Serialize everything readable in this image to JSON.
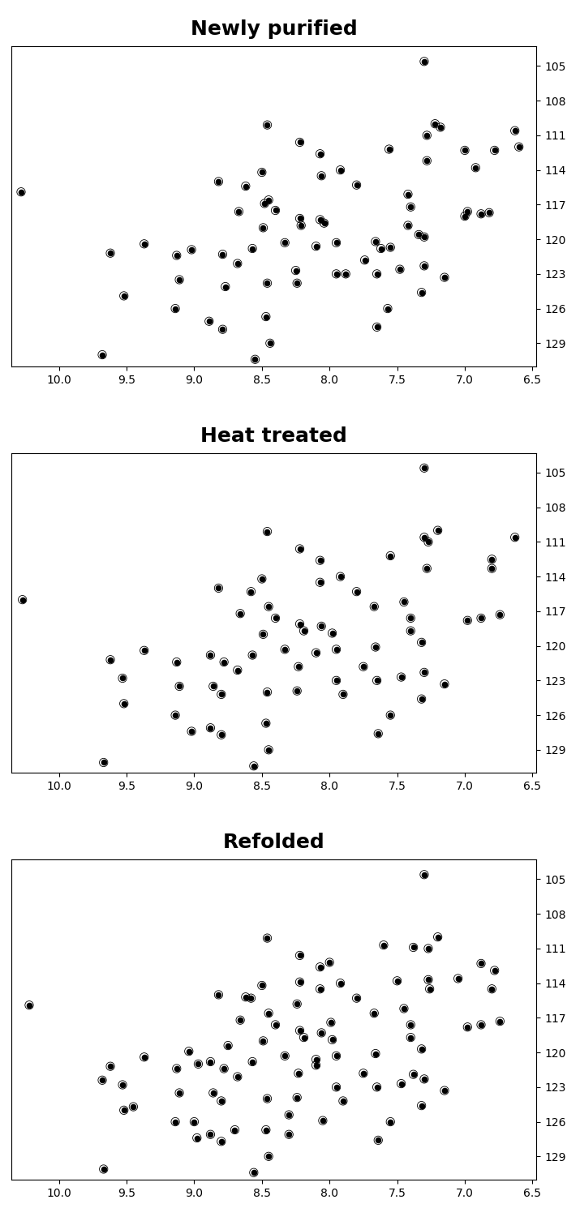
{
  "chart_data": [
    {
      "type": "scatter",
      "title": "Newly purified",
      "color": "#000000",
      "marker": "o",
      "xlim": [
        10.35,
        6.47
      ],
      "ylim": [
        131.0,
        103.3
      ],
      "xticks": [
        {
          "value": 10,
          "label": "10.0"
        },
        9.5,
        {
          "value": 9,
          "label": "9.0"
        },
        8.5,
        {
          "value": 8,
          "label": "8.0"
        },
        7.5,
        {
          "value": 7,
          "label": "7.0"
        },
        6.5
      ],
      "yticks": [
        105,
        108,
        111,
        114,
        117,
        120,
        123,
        126,
        129
      ],
      "x": [
        7.3,
        8.46,
        8.22,
        8.07,
        7.18,
        7.22,
        7.28,
        8.5,
        7.92,
        8.06,
        8.82,
        10.28,
        7.8,
        8.45,
        8.48,
        8.67,
        8.4,
        7.42,
        7.4,
        8.22,
        8.21,
        8.07,
        8.04,
        7.42,
        8.49,
        7.34,
        7.3,
        6.98,
        6.88,
        6.82,
        7.0,
        9.37,
        8.33,
        8.1,
        7.95,
        7.66,
        7.62,
        7.55,
        9.62,
        9.13,
        8.79,
        8.57,
        8.68,
        7.74,
        7.95,
        7.88,
        7.65,
        7.48,
        7.3,
        7.15,
        9.11,
        8.77,
        8.46,
        8.24,
        7.32,
        9.52,
        9.14,
        7.57,
        8.47,
        7.65,
        9.68,
        8.44,
        8.55,
        7.56,
        7.28,
        7.0,
        6.92,
        6.78,
        6.6,
        6.63,
        8.62,
        9.02,
        8.25,
        8.89,
        8.79
      ],
      "values": [
        104.6,
        110.1,
        111.6,
        112.6,
        110.3,
        110.0,
        111.0,
        114.2,
        114.0,
        114.5,
        115.0,
        115.9,
        115.3,
        116.6,
        116.9,
        117.6,
        117.5,
        116.1,
        117.2,
        118.2,
        118.8,
        118.3,
        118.6,
        118.8,
        119.0,
        119.6,
        119.8,
        117.6,
        117.8,
        117.7,
        118.0,
        120.4,
        120.3,
        120.6,
        120.3,
        120.2,
        120.8,
        120.7,
        121.2,
        121.4,
        121.3,
        120.8,
        122.1,
        121.8,
        123.0,
        123.0,
        123.0,
        122.6,
        122.3,
        123.3,
        123.5,
        124.1,
        123.8,
        123.8,
        124.6,
        124.9,
        126.0,
        126.0,
        126.7,
        127.6,
        130.0,
        129.0,
        130.4,
        112.2,
        113.2,
        112.3,
        113.8,
        112.3,
        112.0,
        110.6,
        115.4,
        120.9,
        122.7,
        127.1,
        127.8
      ]
    },
    {
      "type": "scatter",
      "title": "Heat treated",
      "color": "#000000",
      "marker": "o",
      "xlim": [
        10.35,
        6.47
      ],
      "ylim": [
        131.0,
        103.3
      ],
      "xticks": [
        {
          "value": 10,
          "label": "10.0"
        },
        9.5,
        {
          "value": 9,
          "label": "9.0"
        },
        8.5,
        {
          "value": 8,
          "label": "8.0"
        },
        7.5,
        {
          "value": 7,
          "label": "7.0"
        },
        6.5
      ],
      "yticks": [
        105,
        108,
        111,
        114,
        117,
        120,
        123,
        126,
        129
      ],
      "x": [
        7.3,
        8.46,
        8.22,
        8.07,
        7.2,
        7.27,
        8.5,
        8.07,
        7.92,
        8.82,
        8.58,
        10.27,
        7.8,
        8.45,
        8.66,
        8.4,
        7.67,
        7.45,
        7.4,
        8.22,
        8.19,
        8.06,
        7.98,
        7.4,
        8.49,
        7.32,
        6.98,
        6.88,
        6.74,
        9.37,
        8.33,
        8.1,
        7.95,
        7.66,
        9.62,
        9.13,
        8.78,
        8.57,
        8.88,
        8.68,
        8.23,
        7.75,
        7.95,
        7.65,
        7.47,
        7.3,
        7.15,
        9.11,
        8.86,
        8.8,
        8.46,
        8.24,
        7.9,
        7.32,
        9.52,
        9.53,
        9.14,
        7.55,
        8.47,
        8.88,
        8.8,
        7.64,
        9.67,
        8.45,
        8.56,
        7.55,
        7.28,
        6.8,
        6.8,
        7.3,
        6.63,
        9.02
      ],
      "values": [
        104.6,
        110.1,
        111.6,
        112.6,
        110.0,
        111.0,
        114.2,
        114.5,
        114.0,
        115.0,
        115.3,
        116.0,
        115.3,
        116.6,
        117.2,
        117.6,
        116.6,
        116.2,
        117.6,
        118.1,
        118.7,
        118.3,
        118.9,
        118.7,
        119.0,
        119.7,
        117.8,
        117.6,
        117.3,
        120.4,
        120.3,
        120.6,
        120.3,
        120.1,
        121.2,
        121.4,
        121.4,
        120.8,
        120.8,
        122.1,
        121.8,
        121.8,
        123.0,
        123.0,
        122.7,
        122.3,
        123.3,
        123.5,
        123.5,
        124.2,
        124.0,
        123.9,
        124.2,
        124.6,
        125.0,
        122.8,
        126.0,
        126.0,
        126.7,
        127.1,
        127.7,
        127.6,
        130.1,
        129.0,
        130.4,
        112.2,
        113.3,
        112.5,
        113.3,
        110.6,
        110.6,
        127.4
      ]
    },
    {
      "type": "scatter",
      "title": "Refolded",
      "color": "#000000",
      "marker": "o",
      "xlim": [
        10.35,
        6.47
      ],
      "ylim": [
        131.0,
        103.3
      ],
      "xticks": [
        {
          "value": 10,
          "label": "10.0"
        },
        9.5,
        {
          "value": 9,
          "label": "9.0"
        },
        8.5,
        {
          "value": 8,
          "label": "8.0"
        },
        7.5,
        {
          "value": 7,
          "label": "7.0"
        },
        6.5
      ],
      "yticks": [
        105,
        108,
        111,
        114,
        117,
        120,
        123,
        126,
        129
      ],
      "x": [
        7.3,
        8.46,
        8.22,
        8.07,
        7.2,
        7.27,
        8.5,
        8.07,
        7.92,
        8.82,
        8.58,
        10.22,
        7.8,
        8.45,
        8.66,
        8.4,
        7.67,
        7.45,
        7.4,
        8.22,
        8.19,
        8.06,
        7.98,
        7.4,
        8.49,
        7.32,
        6.98,
        6.88,
        6.74,
        9.37,
        8.33,
        8.1,
        7.95,
        7.66,
        9.62,
        9.13,
        8.78,
        8.57,
        8.88,
        8.68,
        8.23,
        7.75,
        7.95,
        7.65,
        7.47,
        7.3,
        7.15,
        9.11,
        8.86,
        8.8,
        8.46,
        8.24,
        7.9,
        7.32,
        9.52,
        9.53,
        9.14,
        7.55,
        8.47,
        8.88,
        8.8,
        7.64,
        9.67,
        8.45,
        8.56,
        9.68,
        9.45,
        9.04,
        8.97,
        8.75,
        8.62,
        8.0,
        8.3,
        8.24,
        7.99,
        8.22,
        7.6,
        7.38,
        7.26,
        7.27,
        7.05,
        6.88,
        6.78,
        6.8,
        8.98,
        8.3,
        8.05,
        7.5,
        7.38,
        8.1,
        9.0,
        8.7
      ],
      "values": [
        104.6,
        110.1,
        111.6,
        112.6,
        110.0,
        111.0,
        114.2,
        114.5,
        114.0,
        115.0,
        115.3,
        115.9,
        115.3,
        116.6,
        117.2,
        117.6,
        116.6,
        116.2,
        117.6,
        118.1,
        118.7,
        118.3,
        118.9,
        118.7,
        119.0,
        119.7,
        117.8,
        117.6,
        117.3,
        120.4,
        120.3,
        120.6,
        120.3,
        120.1,
        121.2,
        121.4,
        121.4,
        120.8,
        120.8,
        122.1,
        121.8,
        121.8,
        123.0,
        123.0,
        122.7,
        122.3,
        123.3,
        123.5,
        123.5,
        124.2,
        124.0,
        123.9,
        124.2,
        124.6,
        125.0,
        122.8,
        126.0,
        126.0,
        126.7,
        127.1,
        127.7,
        127.6,
        130.1,
        129.0,
        130.4,
        122.4,
        124.7,
        119.9,
        121.0,
        119.4,
        115.2,
        112.2,
        125.4,
        115.8,
        117.4,
        113.9,
        110.7,
        110.9,
        114.5,
        113.7,
        113.6,
        112.3,
        112.9,
        114.5,
        127.4,
        127.1,
        125.9,
        113.8,
        121.9,
        121.1,
        126.0,
        126.7
      ]
    }
  ]
}
